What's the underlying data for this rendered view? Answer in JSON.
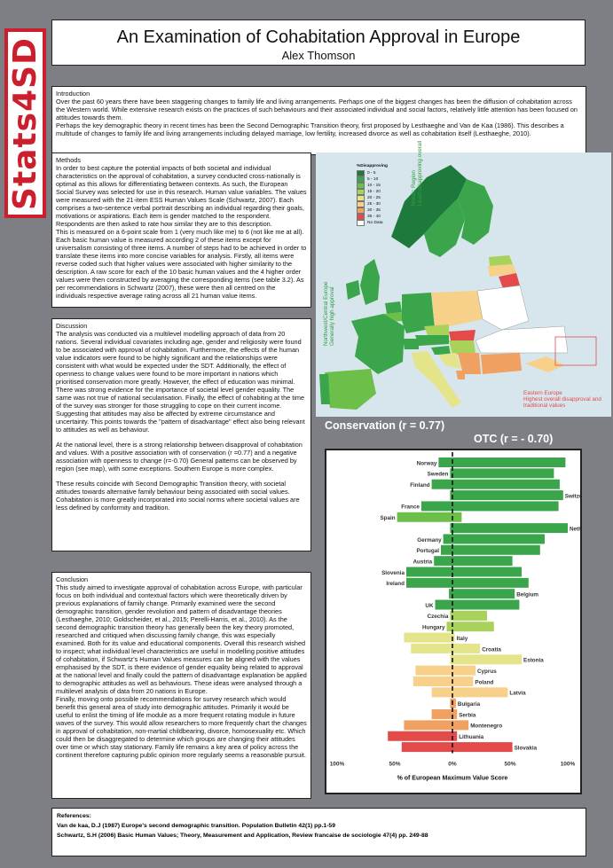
{
  "logo": {
    "text": "Stats4SD"
  },
  "header": {
    "title": "An Examination of Cohabitation Approval in Europe",
    "author": "Alex Thomson"
  },
  "introduction": {
    "heading": "Introduction",
    "p1": "Over the past 60 years there have been staggering changes to family life and living arrangements. Perhaps one of the biggest changes has been the diffusion of cohabitation across the Western world. While extensive research exists on the practices of such behaviours and their associated individual and social factors, relatively little attention has been focused on attitudes towards them.",
    "p2": "Perhaps the key demographic theory in recent times has been the Second Demographic Transition theory, first proposed by Lesthaeghe and Van de Kaa (1986). This describes a multitude of changes to family life and living arrangements including delayed marriage, low fertility, increased divorce as well as cohabitation itself (Lesthaeghe, 2010)."
  },
  "methods": {
    "heading": "Methods",
    "p1": "In order to best capture the potential impacts of both societal and individual characteristics on the approval of cohabitation, a survey conducted cross-nationally is optimal as this allows for differentiating between contexts. As such, the European Social Survey was selected for use in this research. Human value variables. The values were measured with the 21-item ESS Human Values Scale (Schwartz, 2007). Each comprises a two-sentence verbal portrait describing an individual regarding their goals, motivations or aspirations. Each item is gender matched to the respondent. Respondents are then asked to rate how similar they are to this description.",
    "p2": "This is measured on a 6-point scale from 1 (very much like me) to 6 (not like me at all). Each basic human value is measured according 2 of these items except for universalism consisting of three items. A number of steps had to be achieved in order to translate these items into more concise variables for analysis. Firstly, all items were reverse coded such that higher values were associated with higher similarity to the description. A raw score for each of the 10 basic human values and the 4 higher order values were then constructed by averaging the corresponding items (see table 3.2). As per recommendations in Schwartz (2007), these were then all centred on the individuals respective average rating across all 21 human value items."
  },
  "discussion": {
    "heading": "Discussion",
    "p1": "The analysis was conducted via a multilevel modelling approach of data from 20 nations. Several individual covariates including age, gender and religiosity were found to be associated with approval of cohabitation. Furthermore, the effects of the human value indicators were found to be highly significant and the relationships were consistent with what would be expected under the SDT. Additionally, the effect of openness to change values were found to be more important in nations which prioritised conservation more greatly. However, the effect of education was minimal. There was strong evidence for the importance of societal level gender equality. The same was not true of national secularisation. Finally, the effect of cohabiting at the time of the survey was stronger for those struggling to cope on their current income. Suggesting that attitudes may also be affected by extreme circumstance and uncertainty. This points towards the \"pattern of disadvantage\" effect also being relevant to attitudes as well as behaviour.",
    "p2": "At the national level, there is a strong relationship between disapproval of cohabitation and values. With a positive association with of conservation (r =0.77) and a negative association with openness to change (r=-0.70) General patterns can be observed by region (see map), with some exceptions. Southern Europe is more complex.",
    "p3": "These results coincide with Second Demographic Transition theory, with societal attitudes towards alternative family behaviour being associated with social values. Cohabitation is more greatly incorporated into social norms where societal values are less defined by conformity and tradition."
  },
  "conclusion": {
    "heading": "Conclusion",
    "p1": "This study aimed to investigate approval of cohabitation across Europe, with particular focus on both individual and contextual factors which were theoretically driven by previous explanations of family change. Primarily examined were the second demographic transition, gender revolution and pattern of disadvantage theories (Lesthaeghe, 2010; Goldscheider, et al., 2015; Perelli-Harris, et al., 2010). As the second demographic transition theory has generally been the key theory promoted, researched and critiqued when discussing family change, this was especially examined. Both for its value and educational components. Overall this research wished to inspect; what individual level characteristics are useful in modelling positive attitudes of cohabitation, if Schwartz's Human Values measures can be aligned with the values emphasised by the SDT, is there evidence of gender equality being related to approval at the national level and finally could the pattern of disadvantage explanation be applied to demographic attitudes as well as behaviours. These ideas were analysed through a multilevel analysis of data from 20 nations in Europe.",
    "p2": "Finally, moving onto possible recommendations for survey research which would benefit this general area of study into demographic attitudes. Primarily it would be useful to enlist the timing of life module as a more frequent rotating module in future waves of the survey. This would allow researchers to more frequently chart the changes in approval of cohabitation, non-martial childbearing, divorce, homosexuality etc. Which could then be disaggregated to determine which groups are changing their attitudes over time or which stay stationary. Family life remains a key area of policy across the continent therefore capturing public opinion more regularly seems a reasonable pursuit."
  },
  "map": {
    "legend_title": "%Disapproving",
    "legend": [
      {
        "label": "0 - 5",
        "color": "#1e7a3c"
      },
      {
        "label": "5 - 10",
        "color": "#3aa54a"
      },
      {
        "label": "10 - 15",
        "color": "#6cc04a"
      },
      {
        "label": "15 - 20",
        "color": "#a9d25a"
      },
      {
        "label": "20 - 25",
        "color": "#e4e48a"
      },
      {
        "label": "25 - 30",
        "color": "#f7d08a"
      },
      {
        "label": "30 - 35",
        "color": "#f0a060"
      },
      {
        "label": "35 - 40",
        "color": "#e34a4a"
      },
      {
        "label": "No Data",
        "color": "#ffffff"
      }
    ],
    "nordic_label": "Nordic Region\nLeast disapproving overall",
    "nordic_color": "#2f9e44",
    "nw_label": "Northwest/Central Europe\nGenerally high approval",
    "nw_color": "#2f9e44",
    "east_label": "Eastern Europe\nHighest overall disapproval and\ntraditional values",
    "east_color": "#e34a4a"
  },
  "chart_data": {
    "type": "bar",
    "conservation_label": "Conservation (r = 0.77)",
    "otc_label": "OTC (r = - 0.70)",
    "xlabel": "% of European Maximum Value Score",
    "xticks": [
      "100%",
      "50%",
      "0%",
      "50%",
      "100%"
    ],
    "xlim": [
      -100,
      100
    ],
    "categories": [
      "Norway",
      "Sweden",
      "Finland",
      "Switzerland",
      "France",
      "Spain",
      "Netherlands",
      "Germany",
      "Portugal",
      "Austria",
      "Slovenia",
      "Ireland",
      "Belgium",
      "UK",
      "Czechia",
      "Hungary",
      "Italy",
      "Croatia",
      "Estonia",
      "Cyprus",
      "Poland",
      "Latvia",
      "Bulgaria",
      "Serbia",
      "Montenegro",
      "Lithuania",
      "Slovakia"
    ],
    "series": [
      {
        "values": [
          -12,
          -2,
          -18,
          -2,
          -27,
          -48,
          -2,
          -8,
          -10,
          -16,
          -40,
          -40,
          -3,
          -15,
          -2,
          -5,
          -42,
          -36,
          -2,
          -32,
          -34,
          -18,
          -2,
          -18,
          -42,
          -56,
          -44
        ]
      },
      {
        "values": [
          98,
          88,
          93,
          96,
          92,
          8,
          100,
          80,
          76,
          52,
          60,
          66,
          54,
          58,
          30,
          36,
          2,
          24,
          60,
          20,
          18,
          48,
          3,
          4,
          14,
          4,
          52
        ]
      }
    ],
    "bar_colors": [
      "#3aa54a",
      "#3aa54a",
      "#3aa54a",
      "#3aa54a",
      "#3aa54a",
      "#6cc04a",
      "#3aa54a",
      "#3aa54a",
      "#3aa54a",
      "#3aa54a",
      "#3aa54a",
      "#3aa54a",
      "#3aa54a",
      "#3aa54a",
      "#a9d25a",
      "#a9d25a",
      "#e4e48a",
      "#e4e48a",
      "#e4e48a",
      "#f7d08a",
      "#f7d08a",
      "#f7d08a",
      "#f0a060",
      "#f0a060",
      "#f0a060",
      "#e34a4a",
      "#e34a4a"
    ],
    "label_side": [
      "left",
      "left",
      "left",
      "right",
      "left",
      "left",
      "right",
      "left",
      "left",
      "left",
      "left",
      "left",
      "right",
      "left",
      "left",
      "left",
      "right",
      "right",
      "right",
      "right",
      "right",
      "right",
      "right",
      "right",
      "right",
      "right",
      "right"
    ]
  },
  "references": {
    "heading": "References:",
    "ref1": "Van de kaa, D.J (1987) Europe's second demographic transition. Population Bulletin 42(1) pp.1-59",
    "ref2": "Schwartz, S.H (2006) Basic Human Values; Theory, Measurement and Application, Review francaise de sociologie 47(4) pp. 249-88"
  }
}
